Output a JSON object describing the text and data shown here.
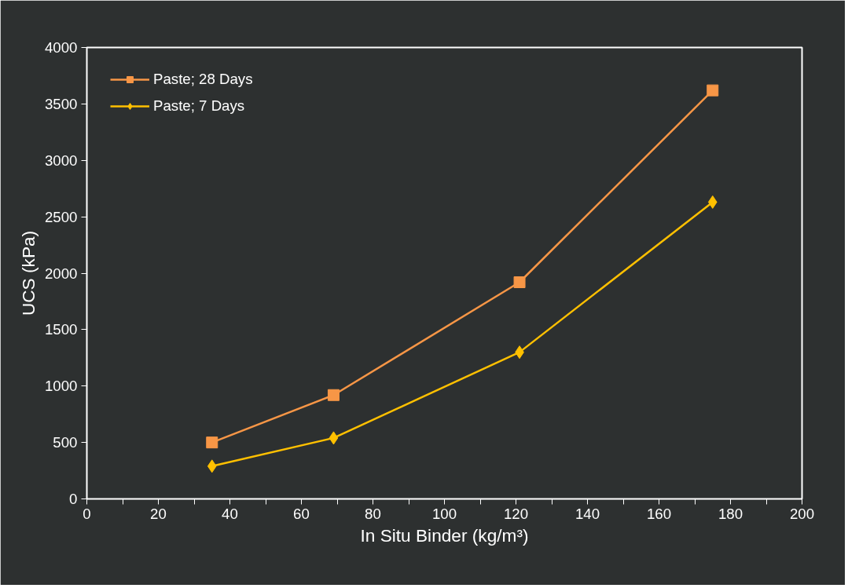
{
  "chart_data": {
    "type": "line",
    "xlabel": "In Situ Binder (kg/m³)",
    "ylabel": "UCS (kPa)",
    "x": [
      35,
      69,
      121,
      175
    ],
    "series": [
      {
        "name": "Paste; 28 Days",
        "color": "#f79646",
        "marker": "square",
        "values": [
          500,
          920,
          1920,
          3620
        ]
      },
      {
        "name": "Paste; 7 Days",
        "color": "#ffc000",
        "marker": "diamond",
        "values": [
          290,
          540,
          1300,
          2630
        ]
      }
    ],
    "xlim": [
      0,
      200
    ],
    "ylim": [
      0,
      4000
    ],
    "xticks": [
      0,
      {
        "value": 10,
        "label": null
      },
      20,
      {
        "value": 30,
        "label": null
      },
      40,
      {
        "value": 50,
        "label": null
      },
      60,
      {
        "value": 70,
        "label": null
      },
      80,
      {
        "value": 90,
        "label": null
      },
      100,
      {
        "value": 110,
        "label": null
      },
      120,
      {
        "value": 130,
        "label": null
      },
      140,
      {
        "value": 150,
        "label": null
      },
      160,
      {
        "value": 170,
        "label": null
      },
      180,
      {
        "value": 190,
        "label": null
      },
      200
    ],
    "yticks": [
      0,
      500,
      1000,
      1500,
      2000,
      2500,
      3000,
      3500,
      4000
    ],
    "legend": "top left",
    "grid": false,
    "line_style": "solid"
  }
}
